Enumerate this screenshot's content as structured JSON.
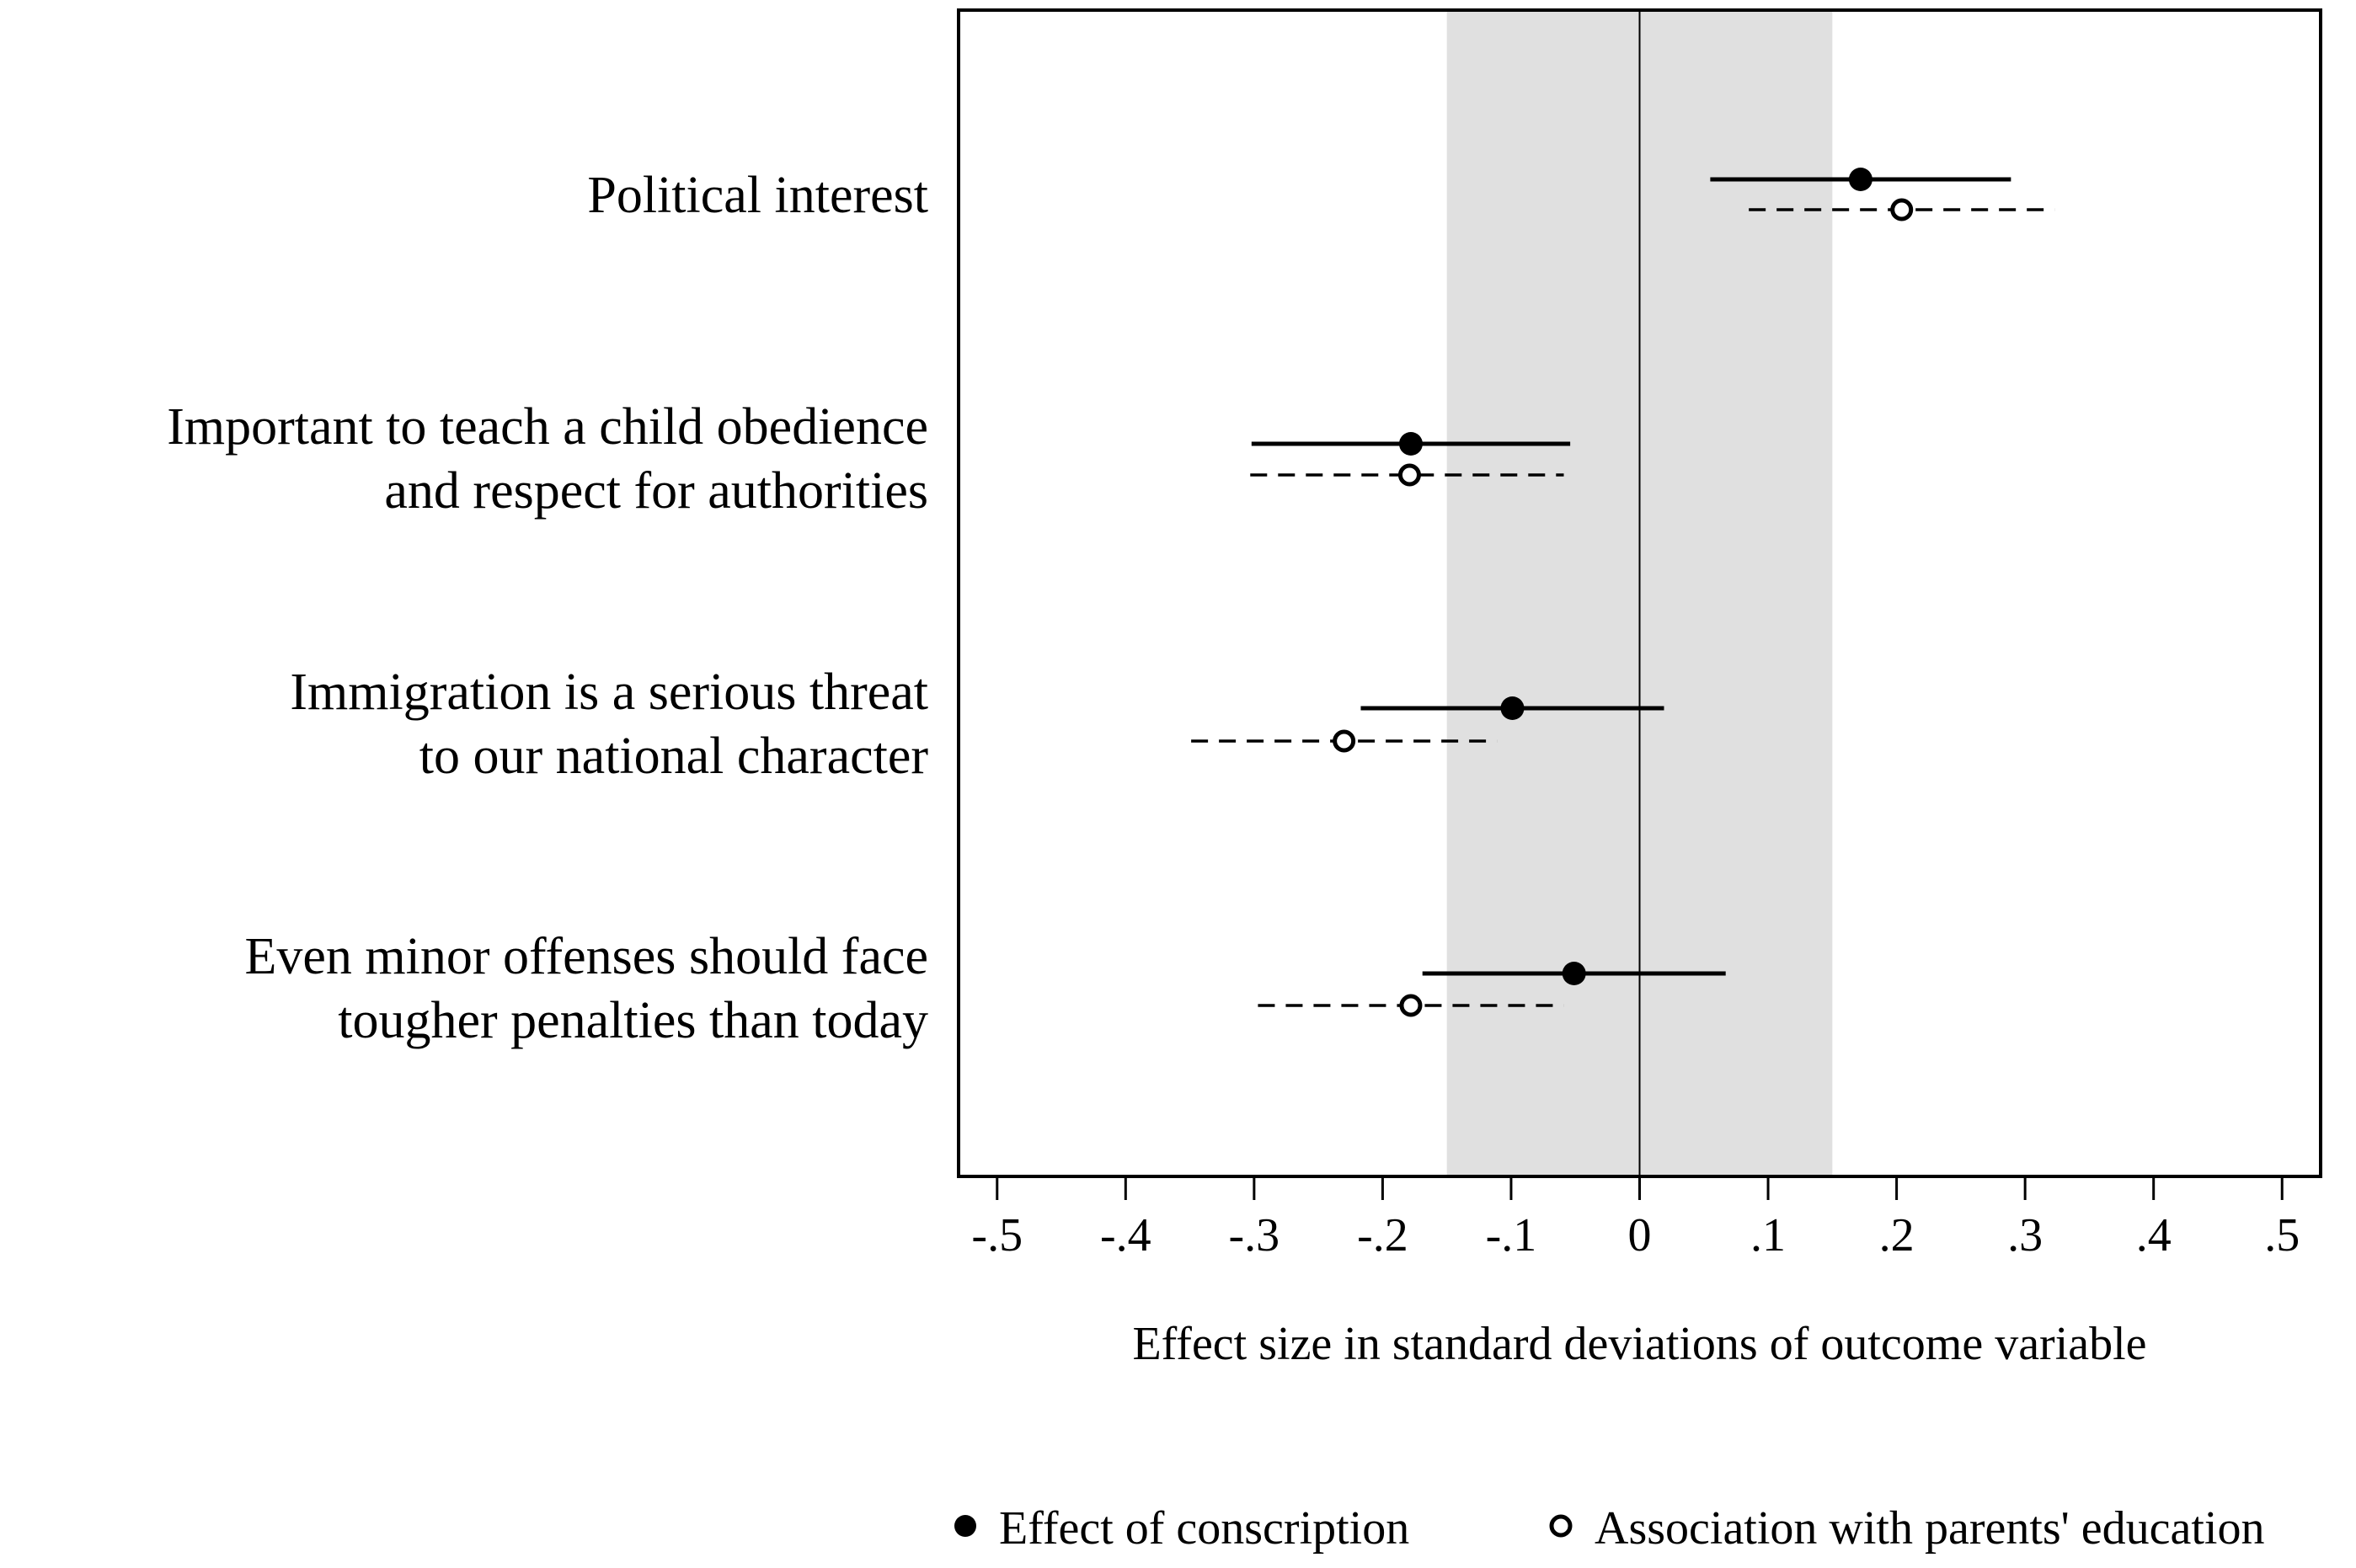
{
  "chart_data": {
    "type": "scatter",
    "subtype": "coefficient-plot",
    "xlabel": "Effect size in standard deviations of outcome variable",
    "xlim": [
      -0.53,
      0.53
    ],
    "xticks": [
      -0.5,
      -0.4,
      -0.3,
      -0.2,
      -0.1,
      0,
      0.1,
      0.2,
      0.3,
      0.4,
      0.5
    ],
    "xtick_labels": [
      "-.5",
      "-.4",
      "-.3",
      "-.2",
      "-.1",
      "0",
      ".1",
      ".2",
      ".3",
      ".4",
      ".5"
    ],
    "shaded_band": [
      -0.15,
      0.15
    ],
    "reference_line": 0,
    "grid": false,
    "legend_position": "bottom",
    "categories": [
      [
        "Political interest"
      ],
      [
        "Important to teach a child obedience",
        "and respect for authorities"
      ],
      [
        "Immigration is a serious threat",
        "to our national character"
      ],
      [
        "Even minor offenses should face",
        "tougher penalties than today"
      ]
    ],
    "series": [
      {
        "name": "Effect of conscription",
        "marker": "filled-circle",
        "line_style": "solid",
        "values": [
          0.172,
          -0.178,
          -0.099,
          -0.051
        ],
        "ci_low": [
          0.055,
          -0.302,
          -0.217,
          -0.169
        ],
        "ci_high": [
          0.289,
          -0.054,
          0.019,
          0.067
        ]
      },
      {
        "name": "Association with parents' education",
        "marker": "hollow-circle",
        "line_style": "dashed",
        "values": [
          0.204,
          -0.179,
          -0.23,
          -0.178
        ],
        "ci_low": [
          0.085,
          -0.303,
          -0.349,
          -0.297
        ],
        "ci_high": [
          0.323,
          -0.059,
          -0.111,
          -0.059
        ]
      }
    ]
  }
}
